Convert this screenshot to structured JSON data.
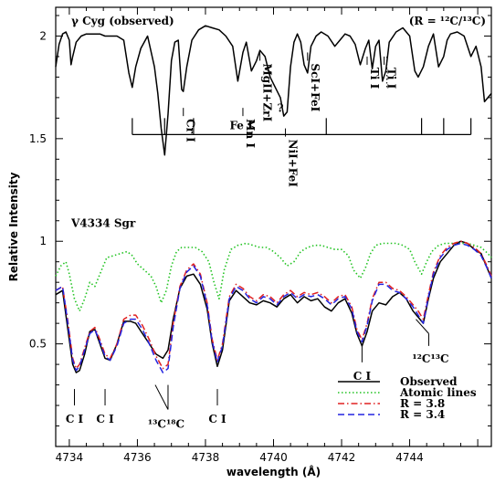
{
  "chart_data": {
    "type": "line",
    "xlabel": "wavelength (Å)",
    "ylabel": "Relative Intensity",
    "xlim": [
      4733.6,
      4746.4
    ],
    "ylim": [
      0.0,
      2.14
    ],
    "x_ticks": [
      4734,
      4736,
      4738,
      4740,
      4742,
      4744
    ],
    "y_ticks": [
      0.5,
      1,
      1.5,
      2
    ],
    "grid": false,
    "legend_position": "bottom-right",
    "top_panel": {
      "label": "γ Cyg (observed)",
      "ratio_note": "(R = ¹²C/¹³C)",
      "line_ids": [
        {
          "label": "Cr I",
          "x": 4737.35
        },
        {
          "label": "Mn I",
          "x": 4739.1
        },
        {
          "label": "MgII+ZrI",
          "x": 4739.6
        },
        {
          "label": "?",
          "x": 4740.2
        },
        {
          "label": "NiI+FeI",
          "x": 4740.35
        },
        {
          "label": "ScI+FeI",
          "x": 4741.0
        },
        {
          "label": "Ti I",
          "x": 4742.75
        },
        {
          "label": "Ti I",
          "x": 4743.25
        }
      ],
      "fe_label": "Fe I",
      "fe_ticks": [
        4735.85,
        4736.8,
        4737.65,
        4741.55,
        4744.35,
        4745.0,
        4745.8
      ]
    },
    "bottom_panel": {
      "label": "V4334 Sgr",
      "annotations": [
        {
          "text": "C I",
          "x": 4734.15
        },
        {
          "text": "C I",
          "x": 4735.05
        },
        {
          "text": "¹³C¹⁸C",
          "x": 4736.9
        },
        {
          "text": "C I",
          "x": 4738.35
        },
        {
          "text": "C I",
          "x": 4742.6
        },
        {
          "text": "¹²C¹³C",
          "x": 4744.4
        }
      ]
    },
    "series": [
      {
        "name": "γ Cyg (observed)",
        "color": "#000000",
        "dash": "solid",
        "x": [
          4733.6,
          4733.7,
          4733.8,
          4733.9,
          4734.0,
          4734.05,
          4734.1,
          4734.2,
          4734.35,
          4734.5,
          4734.7,
          4734.9,
          4735.05,
          4735.2,
          4735.4,
          4735.6,
          4735.75,
          4735.85,
          4735.95,
          4736.1,
          4736.3,
          4736.5,
          4736.6,
          4736.7,
          4736.8,
          4736.9,
          4737.0,
          4737.1,
          4737.2,
          4737.3,
          4737.35,
          4737.45,
          4737.6,
          4737.8,
          4738.0,
          4738.2,
          4738.4,
          4738.6,
          4738.8,
          4738.95,
          4739.1,
          4739.2,
          4739.35,
          4739.5,
          4739.6,
          4739.75,
          4739.9,
          4740.05,
          4740.2,
          4740.3,
          4740.4,
          4740.5,
          4740.6,
          4740.7,
          4740.8,
          4740.9,
          4741.0,
          4741.1,
          4741.25,
          4741.4,
          4741.6,
          4741.8,
          4741.95,
          4742.1,
          4742.25,
          4742.4,
          4742.55,
          4742.7,
          4742.8,
          4742.9,
          4743.0,
          4743.1,
          4743.2,
          4743.3,
          4743.4,
          4743.6,
          4743.8,
          4744.0,
          4744.15,
          4744.25,
          4744.4,
          4744.55,
          4744.7,
          4744.85,
          4745.0,
          4745.1,
          4745.2,
          4745.4,
          4745.6,
          4745.8,
          4745.95,
          4746.1,
          4746.2,
          4746.4
        ],
        "y": [
          1.85,
          1.96,
          2.01,
          2.02,
          1.98,
          1.86,
          1.9,
          1.97,
          2.0,
          2.01,
          2.01,
          2.01,
          2.0,
          2.0,
          2.0,
          1.98,
          1.82,
          1.75,
          1.85,
          1.94,
          2.0,
          1.85,
          1.72,
          1.55,
          1.42,
          1.62,
          1.88,
          1.97,
          1.98,
          1.74,
          1.73,
          1.85,
          1.98,
          2.03,
          2.05,
          2.04,
          2.03,
          2.0,
          1.95,
          1.78,
          1.92,
          1.97,
          1.83,
          1.88,
          1.93,
          1.9,
          1.8,
          1.75,
          1.7,
          1.61,
          1.63,
          1.85,
          1.97,
          2.01,
          1.97,
          1.86,
          1.82,
          1.95,
          2.0,
          2.02,
          2.0,
          1.95,
          1.98,
          2.01,
          2.0,
          1.96,
          1.86,
          1.94,
          1.98,
          1.84,
          1.95,
          1.98,
          1.78,
          1.83,
          1.97,
          2.02,
          2.04,
          2.0,
          1.83,
          1.8,
          1.85,
          1.95,
          2.01,
          1.85,
          1.9,
          1.98,
          2.01,
          2.02,
          2.0,
          1.9,
          1.95,
          1.85,
          1.68,
          1.72
        ]
      },
      {
        "name": "Observed",
        "color": "#000000",
        "dash": "solid",
        "x": [
          4733.6,
          4733.8,
          4733.95,
          4734.1,
          4734.2,
          4734.3,
          4734.45,
          4734.6,
          4734.75,
          4734.9,
          4735.05,
          4735.2,
          4735.4,
          4735.6,
          4735.8,
          4735.95,
          4736.15,
          4736.35,
          4736.55,
          4736.75,
          4736.9,
          4737.05,
          4737.25,
          4737.45,
          4737.65,
          4737.85,
          4738.05,
          4738.2,
          4738.35,
          4738.5,
          4738.7,
          4738.9,
          4739.1,
          4739.3,
          4739.5,
          4739.7,
          4739.9,
          4740.1,
          4740.3,
          4740.5,
          4740.7,
          4740.9,
          4741.1,
          4741.3,
          4741.5,
          4741.7,
          4741.9,
          4742.1,
          4742.3,
          4742.45,
          4742.6,
          4742.75,
          4742.9,
          4743.1,
          4743.3,
          4743.5,
          4743.7,
          4743.9,
          4744.1,
          4744.25,
          4744.4,
          4744.55,
          4744.7,
          4744.9,
          4745.1,
          4745.3,
          4745.5,
          4745.7,
          4745.9,
          4746.1,
          4746.3,
          4746.4
        ],
        "y": [
          0.74,
          0.76,
          0.58,
          0.4,
          0.36,
          0.37,
          0.45,
          0.56,
          0.57,
          0.5,
          0.43,
          0.42,
          0.5,
          0.61,
          0.61,
          0.6,
          0.55,
          0.5,
          0.45,
          0.43,
          0.47,
          0.62,
          0.77,
          0.83,
          0.84,
          0.79,
          0.67,
          0.5,
          0.39,
          0.47,
          0.71,
          0.76,
          0.73,
          0.7,
          0.69,
          0.71,
          0.7,
          0.68,
          0.72,
          0.74,
          0.7,
          0.73,
          0.71,
          0.72,
          0.68,
          0.66,
          0.7,
          0.72,
          0.65,
          0.55,
          0.49,
          0.56,
          0.66,
          0.7,
          0.69,
          0.73,
          0.75,
          0.72,
          0.66,
          0.63,
          0.6,
          0.72,
          0.82,
          0.9,
          0.94,
          0.98,
          1.0,
          0.99,
          0.96,
          0.94,
          0.86,
          0.82
        ]
      },
      {
        "name": "Atomic lines",
        "color": "#22c322",
        "dash": "dotted",
        "x": [
          4733.6,
          4733.75,
          4733.9,
          4734.0,
          4734.15,
          4734.3,
          4734.45,
          4734.6,
          4734.75,
          4734.9,
          4735.1,
          4735.3,
          4735.5,
          4735.7,
          4735.85,
          4736.0,
          4736.2,
          4736.4,
          4736.55,
          4736.7,
          4736.85,
          4737.0,
          4737.15,
          4737.3,
          4737.5,
          4737.7,
          4737.9,
          4738.1,
          4738.25,
          4738.4,
          4738.55,
          4738.75,
          4738.95,
          4739.2,
          4739.4,
          4739.6,
          4739.8,
          4740.0,
          4740.2,
          4740.4,
          4740.6,
          4740.8,
          4741.0,
          4741.2,
          4741.4,
          4741.6,
          4741.8,
          4742.0,
          4742.2,
          4742.35,
          4742.55,
          4742.7,
          4742.85,
          4743.0,
          4743.2,
          4743.4,
          4743.6,
          4743.8,
          4744.0,
          4744.15,
          4744.35,
          4744.5,
          4744.65,
          4744.85,
          4745.05,
          4745.3,
          4745.5,
          4745.7,
          4745.9,
          4746.1,
          4746.3,
          4746.4
        ],
        "y": [
          0.83,
          0.88,
          0.9,
          0.84,
          0.72,
          0.66,
          0.72,
          0.8,
          0.78,
          0.84,
          0.92,
          0.93,
          0.94,
          0.95,
          0.93,
          0.89,
          0.86,
          0.83,
          0.78,
          0.7,
          0.76,
          0.88,
          0.95,
          0.97,
          0.97,
          0.97,
          0.95,
          0.9,
          0.8,
          0.72,
          0.86,
          0.96,
          0.98,
          0.99,
          0.98,
          0.97,
          0.97,
          0.95,
          0.92,
          0.88,
          0.9,
          0.95,
          0.97,
          0.98,
          0.98,
          0.97,
          0.96,
          0.96,
          0.93,
          0.86,
          0.82,
          0.87,
          0.94,
          0.98,
          0.99,
          0.99,
          0.99,
          0.98,
          0.96,
          0.9,
          0.84,
          0.9,
          0.95,
          0.98,
          0.99,
          0.99,
          0.99,
          0.99,
          0.98,
          0.97,
          0.94,
          0.92
        ]
      },
      {
        "name": "R = 3.8",
        "color": "#e02020",
        "dash": "dashdot",
        "x": [
          4733.6,
          4733.8,
          4733.95,
          4734.1,
          4734.2,
          4734.3,
          4734.45,
          4734.6,
          4734.75,
          4734.9,
          4735.05,
          4735.2,
          4735.4,
          4735.6,
          4735.8,
          4735.95,
          4736.15,
          4736.35,
          4736.55,
          4736.75,
          4736.9,
          4737.05,
          4737.25,
          4737.45,
          4737.65,
          4737.85,
          4738.05,
          4738.2,
          4738.35,
          4738.5,
          4738.7,
          4738.9,
          4739.1,
          4739.3,
          4739.5,
          4739.7,
          4739.9,
          4740.1,
          4740.3,
          4740.5,
          4740.7,
          4740.9,
          4741.1,
          4741.3,
          4741.5,
          4741.7,
          4741.9,
          4742.1,
          4742.3,
          4742.45,
          4742.6,
          4742.75,
          4742.9,
          4743.1,
          4743.3,
          4743.5,
          4743.7,
          4743.9,
          4744.1,
          4744.25,
          4744.4,
          4744.55,
          4744.7,
          4744.9,
          4745.1,
          4745.3,
          4745.5,
          4745.7,
          4745.9,
          4746.1,
          4746.3,
          4746.4
        ],
        "y": [
          0.76,
          0.78,
          0.62,
          0.43,
          0.38,
          0.4,
          0.48,
          0.56,
          0.58,
          0.52,
          0.45,
          0.43,
          0.5,
          0.62,
          0.64,
          0.64,
          0.59,
          0.52,
          0.44,
          0.38,
          0.4,
          0.6,
          0.78,
          0.86,
          0.89,
          0.84,
          0.7,
          0.52,
          0.42,
          0.5,
          0.73,
          0.79,
          0.77,
          0.73,
          0.71,
          0.74,
          0.73,
          0.7,
          0.74,
          0.76,
          0.73,
          0.75,
          0.74,
          0.75,
          0.73,
          0.7,
          0.73,
          0.74,
          0.68,
          0.57,
          0.52,
          0.6,
          0.72,
          0.8,
          0.8,
          0.77,
          0.76,
          0.73,
          0.69,
          0.66,
          0.62,
          0.74,
          0.85,
          0.93,
          0.97,
          0.99,
          1.0,
          0.99,
          0.97,
          0.94,
          0.87,
          0.83
        ]
      },
      {
        "name": "R = 3.4",
        "color": "#2424e0",
        "dash": "dashed",
        "x": [
          4733.6,
          4733.8,
          4733.95,
          4734.1,
          4734.2,
          4734.3,
          4734.45,
          4734.6,
          4734.75,
          4734.9,
          4735.05,
          4735.2,
          4735.4,
          4735.6,
          4735.8,
          4735.95,
          4736.15,
          4736.35,
          4736.55,
          4736.75,
          4736.9,
          4737.05,
          4737.25,
          4737.45,
          4737.65,
          4737.85,
          4738.05,
          4738.2,
          4738.35,
          4738.5,
          4738.7,
          4738.9,
          4739.1,
          4739.3,
          4739.5,
          4739.7,
          4739.9,
          4740.1,
          4740.3,
          4740.5,
          4740.7,
          4740.9,
          4741.1,
          4741.3,
          4741.5,
          4741.7,
          4741.9,
          4742.1,
          4742.3,
          4742.45,
          4742.6,
          4742.75,
          4742.9,
          4743.1,
          4743.3,
          4743.5,
          4743.7,
          4743.9,
          4744.1,
          4744.25,
          4744.4,
          4744.55,
          4744.7,
          4744.9,
          4745.1,
          4745.3,
          4745.5,
          4745.7,
          4745.9,
          4746.1,
          4746.3,
          4746.4
        ],
        "y": [
          0.76,
          0.78,
          0.61,
          0.42,
          0.37,
          0.39,
          0.47,
          0.55,
          0.57,
          0.51,
          0.44,
          0.42,
          0.49,
          0.6,
          0.62,
          0.62,
          0.57,
          0.5,
          0.42,
          0.36,
          0.38,
          0.58,
          0.77,
          0.85,
          0.88,
          0.83,
          0.69,
          0.51,
          0.41,
          0.49,
          0.72,
          0.78,
          0.76,
          0.72,
          0.7,
          0.73,
          0.72,
          0.69,
          0.73,
          0.75,
          0.72,
          0.74,
          0.73,
          0.74,
          0.72,
          0.69,
          0.72,
          0.73,
          0.67,
          0.56,
          0.51,
          0.59,
          0.71,
          0.79,
          0.79,
          0.76,
          0.75,
          0.72,
          0.68,
          0.64,
          0.6,
          0.73,
          0.84,
          0.92,
          0.96,
          0.98,
          0.99,
          0.98,
          0.96,
          0.93,
          0.86,
          0.82
        ]
      }
    ]
  }
}
